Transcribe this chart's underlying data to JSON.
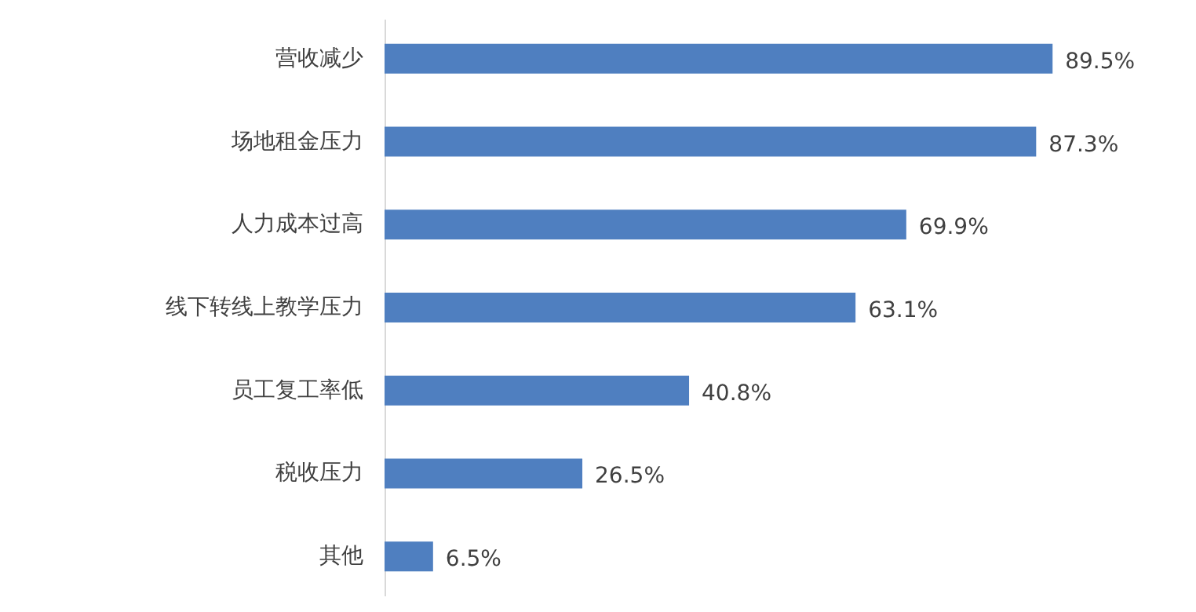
{
  "chart_data": {
    "type": "bar",
    "orientation": "horizontal",
    "categories": [
      "营收减少",
      "场地租金压力",
      "人力成本过高",
      "线下转线上教学压力",
      "员工复工率低",
      "税收压力",
      "其他"
    ],
    "values": [
      89.5,
      87.3,
      69.9,
      63.1,
      40.8,
      26.5,
      6.5
    ],
    "value_labels": [
      "89.5%",
      "87.3%",
      "69.9%",
      "63.1%",
      "40.8%",
      "26.5%",
      "6.5%"
    ],
    "color": "#4f7fc0",
    "grid": false
  }
}
